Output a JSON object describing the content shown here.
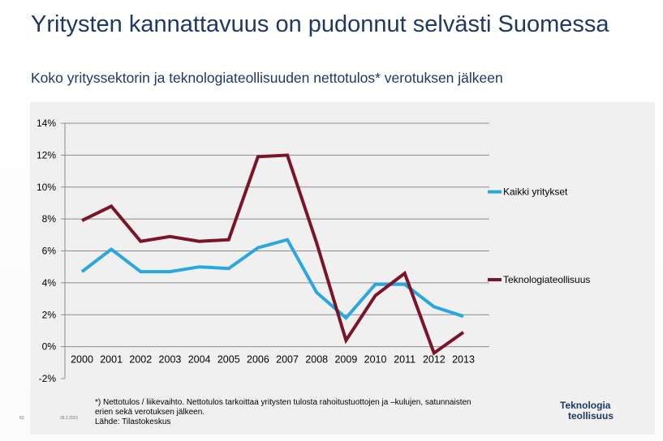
{
  "slide": {
    "title": "Yritysten kannattavuus on pudonnut selvästi Suomessa",
    "subtitle": "Koko yrityssektorin ja teknologiateollisuuden nettotulos* verotuksen jälkeen",
    "footnote_lines": [
      "*) Nettotulos / liikevaihto. Nettotulos tarkoittaa yritysten tulosta rahoitustuottojen ja –kulujen, satunnaisten",
      "erien sekä verotuksen jälkeen.",
      "Lähde: Tilastokeskus"
    ],
    "slide_number": "83",
    "date": "28.2.2021",
    "logo": {
      "line1": "Teknologia",
      "line2": "teollisuus"
    }
  },
  "chart_data": {
    "type": "line",
    "title": "",
    "xlabel": "",
    "ylabel": "",
    "x": [
      "2000",
      "2001",
      "2002",
      "2003",
      "2004",
      "2005",
      "2006",
      "2007",
      "2008",
      "2009",
      "2010",
      "2011",
      "2012",
      "2013"
    ],
    "y_ticks": [
      "14%",
      "12%",
      "10%",
      "8%",
      "6%",
      "4%",
      "2%",
      "0%",
      "-2%"
    ],
    "ylim": [
      -2,
      14
    ],
    "grid": "horizontal",
    "legend_position": "right",
    "series": [
      {
        "name": "Kaikki yritykset",
        "color": "#2aa6e0",
        "values": [
          4.7,
          6.1,
          4.7,
          4.7,
          5.0,
          4.9,
          6.2,
          6.7,
          3.4,
          1.8,
          3.9,
          3.9,
          2.5,
          1.9
        ]
      },
      {
        "name": "Teknologiateollisuus",
        "color": "#7b1428",
        "values": [
          7.9,
          8.8,
          6.6,
          6.9,
          6.6,
          6.7,
          11.9,
          12.0,
          6.5,
          0.4,
          3.2,
          4.6,
          -0.4,
          0.9
        ]
      }
    ]
  }
}
